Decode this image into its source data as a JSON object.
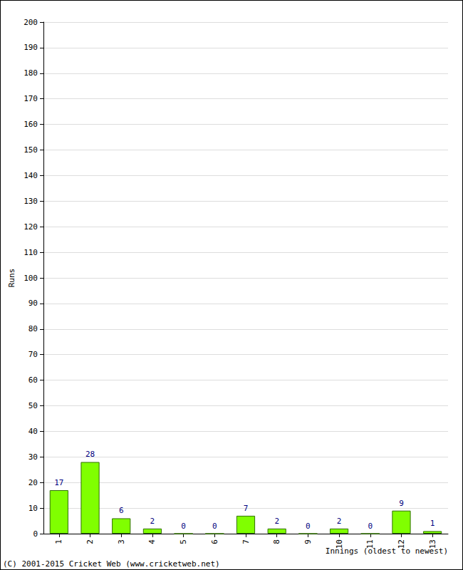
{
  "chart_data": {
    "type": "bar",
    "x_label": "Innings (oldest to newest)",
    "y_label": "Runs",
    "annotations": [
      "(C) 2001-2015 Cricket Web (www.cricketweb.net)"
    ],
    "categories": [
      "1",
      "2",
      "3",
      "4",
      "5",
      "6",
      "7",
      "8",
      "9",
      "10",
      "11",
      "12",
      "13"
    ],
    "values": [
      17,
      28,
      6,
      2,
      0,
      0,
      7,
      2,
      0,
      2,
      0,
      9,
      1
    ],
    "color": "#80ff00",
    "ylim": [
      0,
      200
    ],
    "yticks": [
      0,
      10,
      20,
      30,
      40,
      50,
      60,
      70,
      80,
      90,
      100,
      110,
      120,
      130,
      140,
      150,
      160,
      170,
      180,
      190,
      200
    ],
    "grid": true,
    "data_labels": true
  }
}
